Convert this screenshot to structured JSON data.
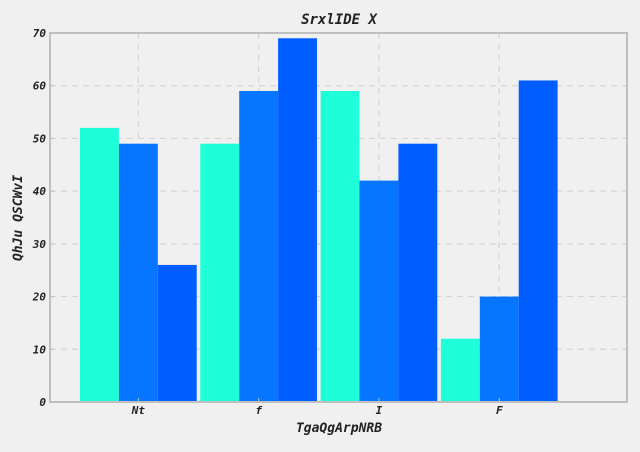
{
  "chart_data": {
    "type": "bar",
    "title": "SrxlIDE X",
    "xlabel": "TgaQgArpNRB",
    "ylabel": "QhJu QSCWvI",
    "categories": [
      "Nt",
      "f",
      "I",
      "F"
    ],
    "series": [
      {
        "values": [
          52,
          49,
          59,
          12
        ],
        "color": "#1effd9"
      },
      {
        "values": [
          49,
          59,
          42,
          20
        ],
        "color": "#0675ff"
      },
      {
        "values": [
          26,
          69,
          49,
          61
        ],
        "color": "#005dff"
      }
    ],
    "ylim": [
      0,
      70
    ],
    "yticks": [
      0,
      10,
      20,
      30,
      40,
      50,
      60,
      70
    ],
    "ytick_labels": [
      "0",
      "10",
      "20",
      "30",
      "40",
      "50",
      "60",
      "70"
    ],
    "grid": true,
    "colors": {
      "background": "#f0f0f0",
      "axes_border": "#bfbfbf",
      "grid": "#d5d5d5"
    }
  }
}
